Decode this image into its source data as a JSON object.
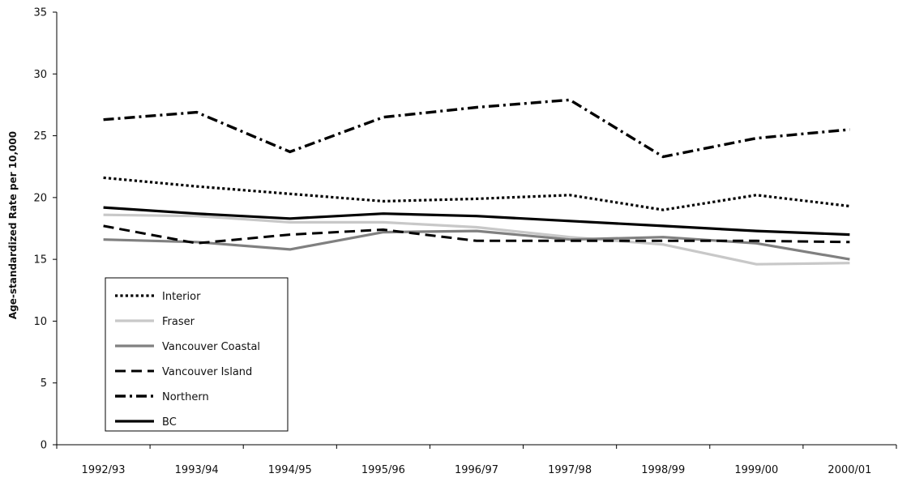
{
  "chart_data": {
    "type": "line",
    "title": "",
    "xlabel": "",
    "ylabel": "Age-standardized Rate per 10,000",
    "ylim": [
      0,
      35
    ],
    "yticks": [
      0,
      5,
      10,
      15,
      20,
      25,
      30,
      35
    ],
    "categories": [
      "1992/93",
      "1993/94",
      "1994/95",
      "1995/96",
      "1996/97",
      "1997/98",
      "1998/99",
      "1999/00",
      "2000/01"
    ],
    "grid": false,
    "legend": "bottom-left",
    "series": [
      {
        "name": "Interior",
        "style": "dotted",
        "color": "#000000",
        "values": [
          21.6,
          20.9,
          20.3,
          19.7,
          19.9,
          20.2,
          19.0,
          20.2,
          19.3
        ]
      },
      {
        "name": "Fraser",
        "style": "solid",
        "color": "#c8c8c8",
        "values": [
          18.6,
          18.5,
          18.0,
          18.0,
          17.6,
          16.8,
          16.2,
          14.6,
          14.7
        ]
      },
      {
        "name": "Vancouver Coastal",
        "style": "solid",
        "color": "#808080",
        "values": [
          16.6,
          16.4,
          15.8,
          17.2,
          17.3,
          16.6,
          16.8,
          16.3,
          15.0
        ]
      },
      {
        "name": "Vancouver Island",
        "style": "dashed",
        "color": "#000000",
        "values": [
          17.7,
          16.3,
          17.0,
          17.4,
          16.5,
          16.5,
          16.5,
          16.5,
          16.4
        ]
      },
      {
        "name": "Northern",
        "style": "dashdot",
        "color": "#000000",
        "values": [
          26.3,
          26.9,
          23.7,
          26.5,
          27.3,
          27.9,
          23.3,
          24.8,
          25.5
        ]
      },
      {
        "name": "BC",
        "style": "solid",
        "color": "#000000",
        "values": [
          19.2,
          18.7,
          18.3,
          18.7,
          18.5,
          18.1,
          17.7,
          17.3,
          17.0
        ]
      }
    ]
  }
}
